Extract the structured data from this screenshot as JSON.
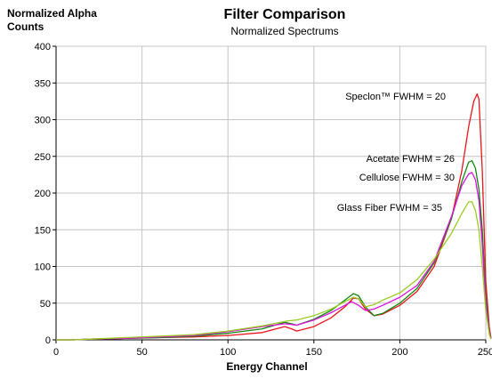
{
  "chart_data": {
    "type": "line",
    "title": "Filter Comparison",
    "subtitle": "Normalized Spectrums",
    "xlabel": "Energy Channel",
    "ylabel": "Normalized Alpha Counts",
    "xlim": [
      0,
      250
    ],
    "ylim": [
      0,
      400
    ],
    "xticks": [
      0,
      50,
      100,
      150,
      200,
      250
    ],
    "yticks": [
      0,
      50,
      100,
      150,
      200,
      250,
      300,
      350,
      400
    ],
    "xtick_labels": [
      "0",
      "50",
      "100",
      "150",
      "200",
      "250"
    ],
    "ytick_labels": [
      "0",
      "50",
      "100",
      "150",
      "200",
      "250",
      "300",
      "350",
      "400"
    ],
    "grid": true,
    "legend": "inline labels",
    "series": [
      {
        "name": "Speclon™ FWHM = 20",
        "color": "#e8141c",
        "points": [
          [
            0,
            0
          ],
          [
            10,
            0
          ],
          [
            20,
            1
          ],
          [
            40,
            2
          ],
          [
            60,
            3
          ],
          [
            80,
            4
          ],
          [
            100,
            6
          ],
          [
            120,
            10
          ],
          [
            133,
            18
          ],
          [
            137,
            15
          ],
          [
            140,
            12
          ],
          [
            150,
            18
          ],
          [
            160,
            30
          ],
          [
            168,
            45
          ],
          [
            173,
            57
          ],
          [
            176,
            56
          ],
          [
            180,
            42
          ],
          [
            185,
            33
          ],
          [
            190,
            35
          ],
          [
            200,
            47
          ],
          [
            210,
            66
          ],
          [
            220,
            100
          ],
          [
            230,
            165
          ],
          [
            236,
            230
          ],
          [
            240,
            290
          ],
          [
            243,
            325
          ],
          [
            245,
            335
          ],
          [
            246,
            328
          ],
          [
            248,
            230
          ],
          [
            250,
            80
          ],
          [
            252,
            18
          ],
          [
            253,
            3
          ]
        ]
      },
      {
        "name": "Acetate FWHM = 26",
        "color": "#118811",
        "points": [
          [
            0,
            0
          ],
          [
            10,
            0
          ],
          [
            20,
            1
          ],
          [
            40,
            2
          ],
          [
            60,
            3
          ],
          [
            80,
            5
          ],
          [
            100,
            9
          ],
          [
            120,
            15
          ],
          [
            133,
            24
          ],
          [
            137,
            22
          ],
          [
            140,
            20
          ],
          [
            150,
            28
          ],
          [
            160,
            40
          ],
          [
            168,
            54
          ],
          [
            173,
            63
          ],
          [
            176,
            60
          ],
          [
            180,
            45
          ],
          [
            185,
            33
          ],
          [
            190,
            36
          ],
          [
            200,
            50
          ],
          [
            210,
            70
          ],
          [
            220,
            105
          ],
          [
            230,
            165
          ],
          [
            236,
            215
          ],
          [
            240,
            242
          ],
          [
            242,
            244
          ],
          [
            244,
            234
          ],
          [
            246,
            205
          ],
          [
            248,
            150
          ],
          [
            250,
            60
          ],
          [
            252,
            12
          ],
          [
            253,
            2
          ]
        ]
      },
      {
        "name": "Cellulose FWHM = 30",
        "color": "#dd11dd",
        "points": [
          [
            0,
            0
          ],
          [
            10,
            0
          ],
          [
            20,
            1
          ],
          [
            40,
            2
          ],
          [
            60,
            4
          ],
          [
            80,
            6
          ],
          [
            100,
            11
          ],
          [
            120,
            18
          ],
          [
            133,
            22
          ],
          [
            137,
            21
          ],
          [
            140,
            20
          ],
          [
            150,
            27
          ],
          [
            160,
            37
          ],
          [
            168,
            47
          ],
          [
            172,
            52
          ],
          [
            176,
            47
          ],
          [
            180,
            40
          ],
          [
            185,
            42
          ],
          [
            190,
            47
          ],
          [
            200,
            58
          ],
          [
            210,
            74
          ],
          [
            220,
            107
          ],
          [
            230,
            168
          ],
          [
            236,
            210
          ],
          [
            240,
            226
          ],
          [
            242,
            228
          ],
          [
            244,
            218
          ],
          [
            246,
            190
          ],
          [
            248,
            130
          ],
          [
            250,
            50
          ],
          [
            252,
            10
          ],
          [
            253,
            2
          ]
        ]
      },
      {
        "name": "Glass Fiber FWHM = 35",
        "color": "#99cc22",
        "points": [
          [
            0,
            0
          ],
          [
            10,
            0
          ],
          [
            20,
            1
          ],
          [
            40,
            3
          ],
          [
            60,
            5
          ],
          [
            80,
            7
          ],
          [
            100,
            12
          ],
          [
            120,
            19
          ],
          [
            135,
            26
          ],
          [
            140,
            27
          ],
          [
            150,
            33
          ],
          [
            160,
            42
          ],
          [
            168,
            52
          ],
          [
            173,
            58
          ],
          [
            176,
            56
          ],
          [
            180,
            45
          ],
          [
            185,
            48
          ],
          [
            190,
            54
          ],
          [
            200,
            64
          ],
          [
            210,
            82
          ],
          [
            220,
            110
          ],
          [
            230,
            145
          ],
          [
            236,
            172
          ],
          [
            240,
            188
          ],
          [
            242,
            188
          ],
          [
            244,
            176
          ],
          [
            246,
            150
          ],
          [
            248,
            100
          ],
          [
            250,
            40
          ],
          [
            252,
            8
          ],
          [
            253,
            1
          ]
        ]
      }
    ],
    "annotations": [
      {
        "text": "Speclon™ FWHM = 20"
      },
      {
        "text": "Acetate FWHM = 26"
      },
      {
        "text": "Cellulose FWHM = 30"
      },
      {
        "text": "Glass Fiber FWHM = 35"
      }
    ]
  }
}
